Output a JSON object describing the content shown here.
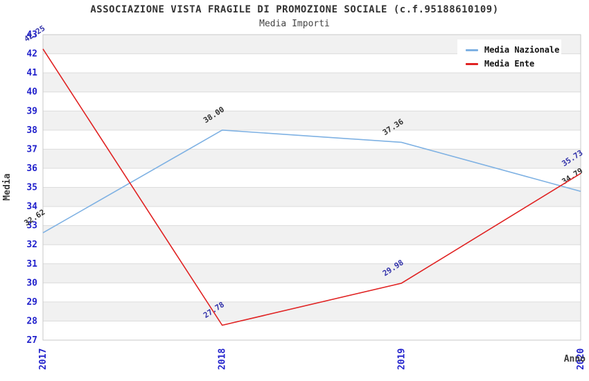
{
  "header": {
    "title": "ASSOCIAZIONE VISTA FRAGILE DI PROMOZIONE SOCIALE (c.f.95188610109)",
    "subtitle": "Media Importi"
  },
  "chart_data": {
    "type": "line",
    "x_categories": [
      "2017",
      "2018",
      "2019",
      "2020"
    ],
    "xlabel": "Anno",
    "ylabel": "Media",
    "ylim": [
      27,
      43
    ],
    "y_tick_step": 1,
    "grid": true,
    "banded_background": true,
    "legend_position": "top-right",
    "series": [
      {
        "name": "Media Nazionale",
        "color": "#7EB1E3",
        "label_color": "#333333",
        "values": [
          32.62,
          38.0,
          37.36,
          34.79
        ],
        "labels": [
          "32.62",
          "38.00",
          "37.36",
          "34.79"
        ]
      },
      {
        "name": "Media Ente",
        "color": "#E02222",
        "label_color": "#3232AA",
        "values": [
          42.25,
          27.78,
          29.98,
          35.73
        ],
        "labels": [
          "42.25",
          "27.78",
          "29.98",
          "35.73"
        ]
      }
    ]
  },
  "style": {
    "axis_tick_color": "#2222CC",
    "band_color": "#F1F1F1",
    "grid_color": "#DCDCDC",
    "border_color": "#C9C9C9"
  }
}
